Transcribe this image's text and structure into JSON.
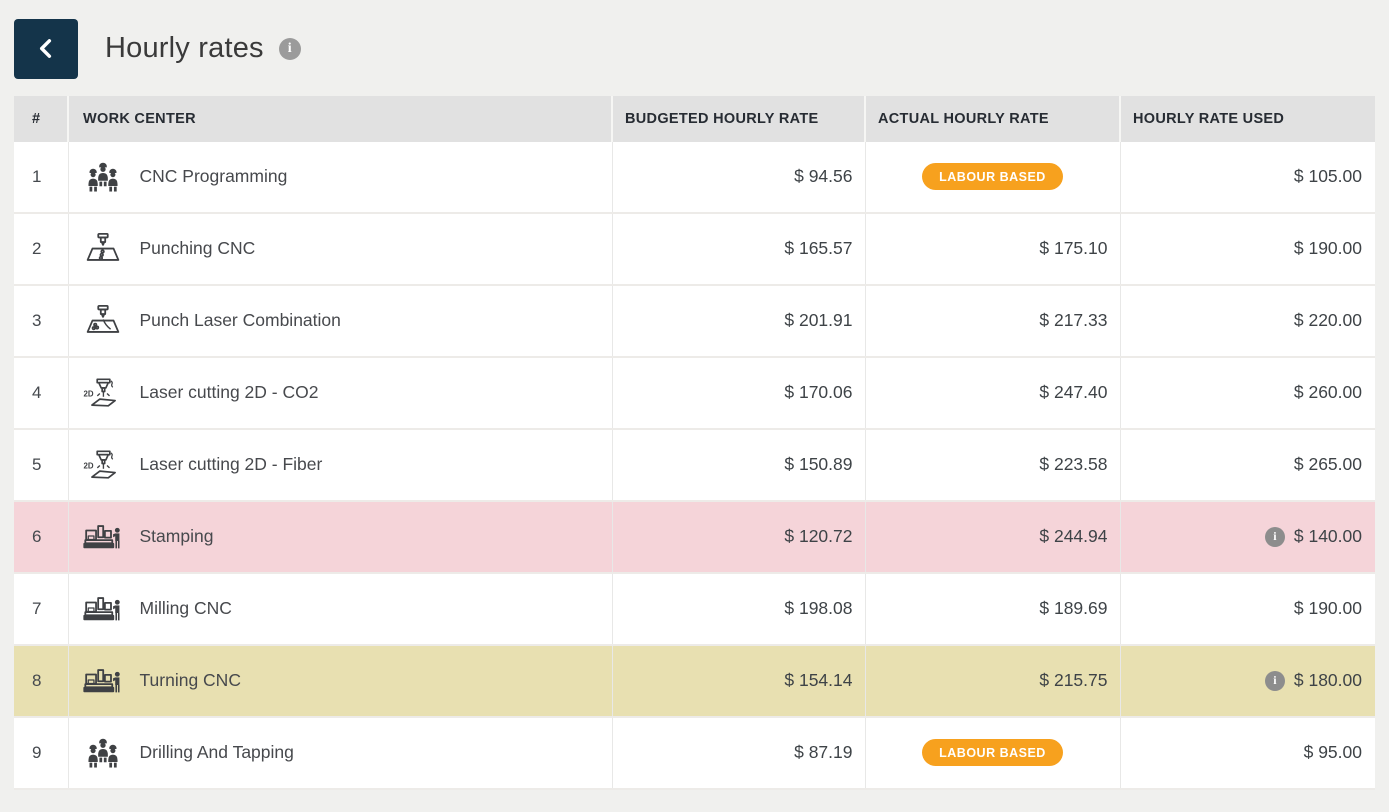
{
  "header": {
    "title": "Hourly rates",
    "back_button_icon": "chevron-left-icon",
    "title_info_icon": "info-icon"
  },
  "colors": {
    "page_background": "#f0f0ee",
    "accent_navy": "#14344a",
    "badge_orange": "#f7a11e",
    "row_highlight_pink": "#f5d4d9",
    "row_highlight_tan": "#e8e0b1",
    "header_gray": "#e1e1e1"
  },
  "table": {
    "columns": [
      {
        "key": "num",
        "label": "#"
      },
      {
        "key": "work_center",
        "label": "WORK CENTER"
      },
      {
        "key": "budgeted",
        "label": "BUDGETED HOURLY RATE"
      },
      {
        "key": "actual",
        "label": "ACTUAL HOURLY RATE"
      },
      {
        "key": "used",
        "label": "HOURLY RATE USED"
      }
    ],
    "rows": [
      {
        "num": "1",
        "icon": "workers-team-icon",
        "work_center": "CNC Programming",
        "budgeted": "$ 94.56",
        "actual": {
          "type": "badge",
          "label": "LABOUR BASED"
        },
        "used": {
          "value": "$ 105.00",
          "info": false
        },
        "highlight": "none"
      },
      {
        "num": "2",
        "icon": "punch-machine-icon",
        "work_center": "Punching CNC",
        "budgeted": "$ 165.57",
        "actual": {
          "type": "value",
          "label": "$ 175.10"
        },
        "used": {
          "value": "$ 190.00",
          "info": false
        },
        "highlight": "none"
      },
      {
        "num": "3",
        "icon": "punch-laser-icon",
        "work_center": "Punch Laser Combination",
        "budgeted": "$ 201.91",
        "actual": {
          "type": "value",
          "label": "$ 217.33"
        },
        "used": {
          "value": "$ 220.00",
          "info": false
        },
        "highlight": "none"
      },
      {
        "num": "4",
        "icon": "laser-2d-icon",
        "work_center": "Laser cutting 2D - CO2",
        "budgeted": "$ 170.06",
        "actual": {
          "type": "value",
          "label": "$ 247.40"
        },
        "used": {
          "value": "$ 260.00",
          "info": false
        },
        "highlight": "none"
      },
      {
        "num": "5",
        "icon": "laser-2d-icon",
        "work_center": "Laser cutting 2D - Fiber",
        "budgeted": "$ 150.89",
        "actual": {
          "type": "value",
          "label": "$ 223.58"
        },
        "used": {
          "value": "$ 265.00",
          "info": false
        },
        "highlight": "none"
      },
      {
        "num": "6",
        "icon": "cnc-machine-icon",
        "work_center": "Stamping",
        "budgeted": "$ 120.72",
        "actual": {
          "type": "value",
          "label": "$ 244.94"
        },
        "used": {
          "value": "$ 140.00",
          "info": true
        },
        "highlight": "pink"
      },
      {
        "num": "7",
        "icon": "cnc-machine-icon",
        "work_center": "Milling CNC",
        "budgeted": "$ 198.08",
        "actual": {
          "type": "value",
          "label": "$ 189.69"
        },
        "used": {
          "value": "$ 190.00",
          "info": false
        },
        "highlight": "none"
      },
      {
        "num": "8",
        "icon": "cnc-machine-icon",
        "work_center": "Turning CNC",
        "budgeted": "$ 154.14",
        "actual": {
          "type": "value",
          "label": "$ 215.75"
        },
        "used": {
          "value": "$ 180.00",
          "info": true
        },
        "highlight": "tan"
      },
      {
        "num": "9",
        "icon": "workers-team-icon",
        "work_center": "Drilling And Tapping",
        "budgeted": "$ 87.19",
        "actual": {
          "type": "badge",
          "label": "LABOUR BASED"
        },
        "used": {
          "value": "$ 95.00",
          "info": false
        },
        "highlight": "none"
      }
    ]
  }
}
